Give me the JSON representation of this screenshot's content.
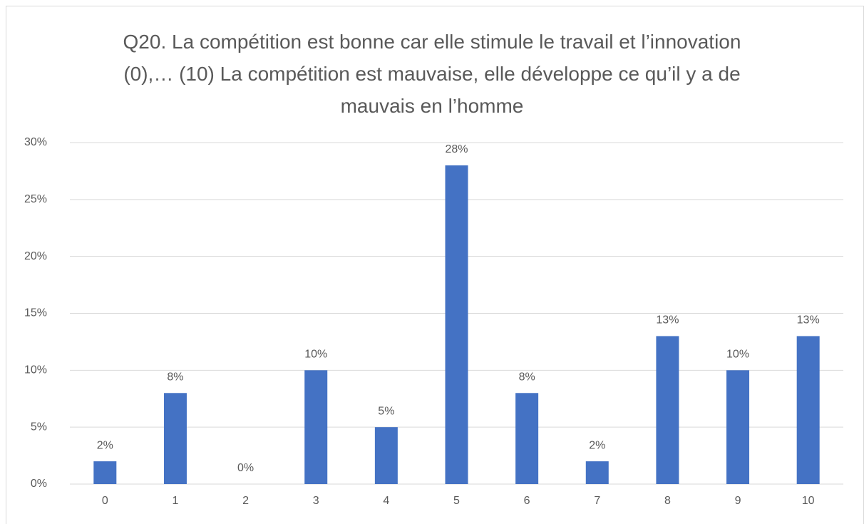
{
  "chart_data": {
    "type": "bar",
    "title": "Q20. La compétition est bonne car elle stimule le travail et l’innovation (0),… (10) La compétition est mauvaise, elle développe ce qu’il y a de mauvais en l’homme",
    "categories": [
      "0",
      "1",
      "2",
      "3",
      "4",
      "5",
      "6",
      "7",
      "8",
      "9",
      "10"
    ],
    "values": [
      2,
      8,
      0,
      10,
      5,
      28,
      8,
      2,
      13,
      10,
      13
    ],
    "value_labels": [
      "2%",
      "8%",
      "0%",
      "10%",
      "5%",
      "28%",
      "8%",
      "2%",
      "13%",
      "10%",
      "13%"
    ],
    "color": "#4472c4",
    "ylim": [
      0,
      30
    ],
    "yticks": [
      {
        "value": 0,
        "label": "0%"
      },
      {
        "value": 5,
        "label": "5%"
      },
      {
        "value": 10,
        "label": "10%"
      },
      {
        "value": 15,
        "label": "15%"
      },
      {
        "value": 20,
        "label": "20%"
      },
      {
        "value": 25,
        "label": "25%"
      },
      {
        "value": 30,
        "label": "30%"
      }
    ],
    "grid": true
  }
}
